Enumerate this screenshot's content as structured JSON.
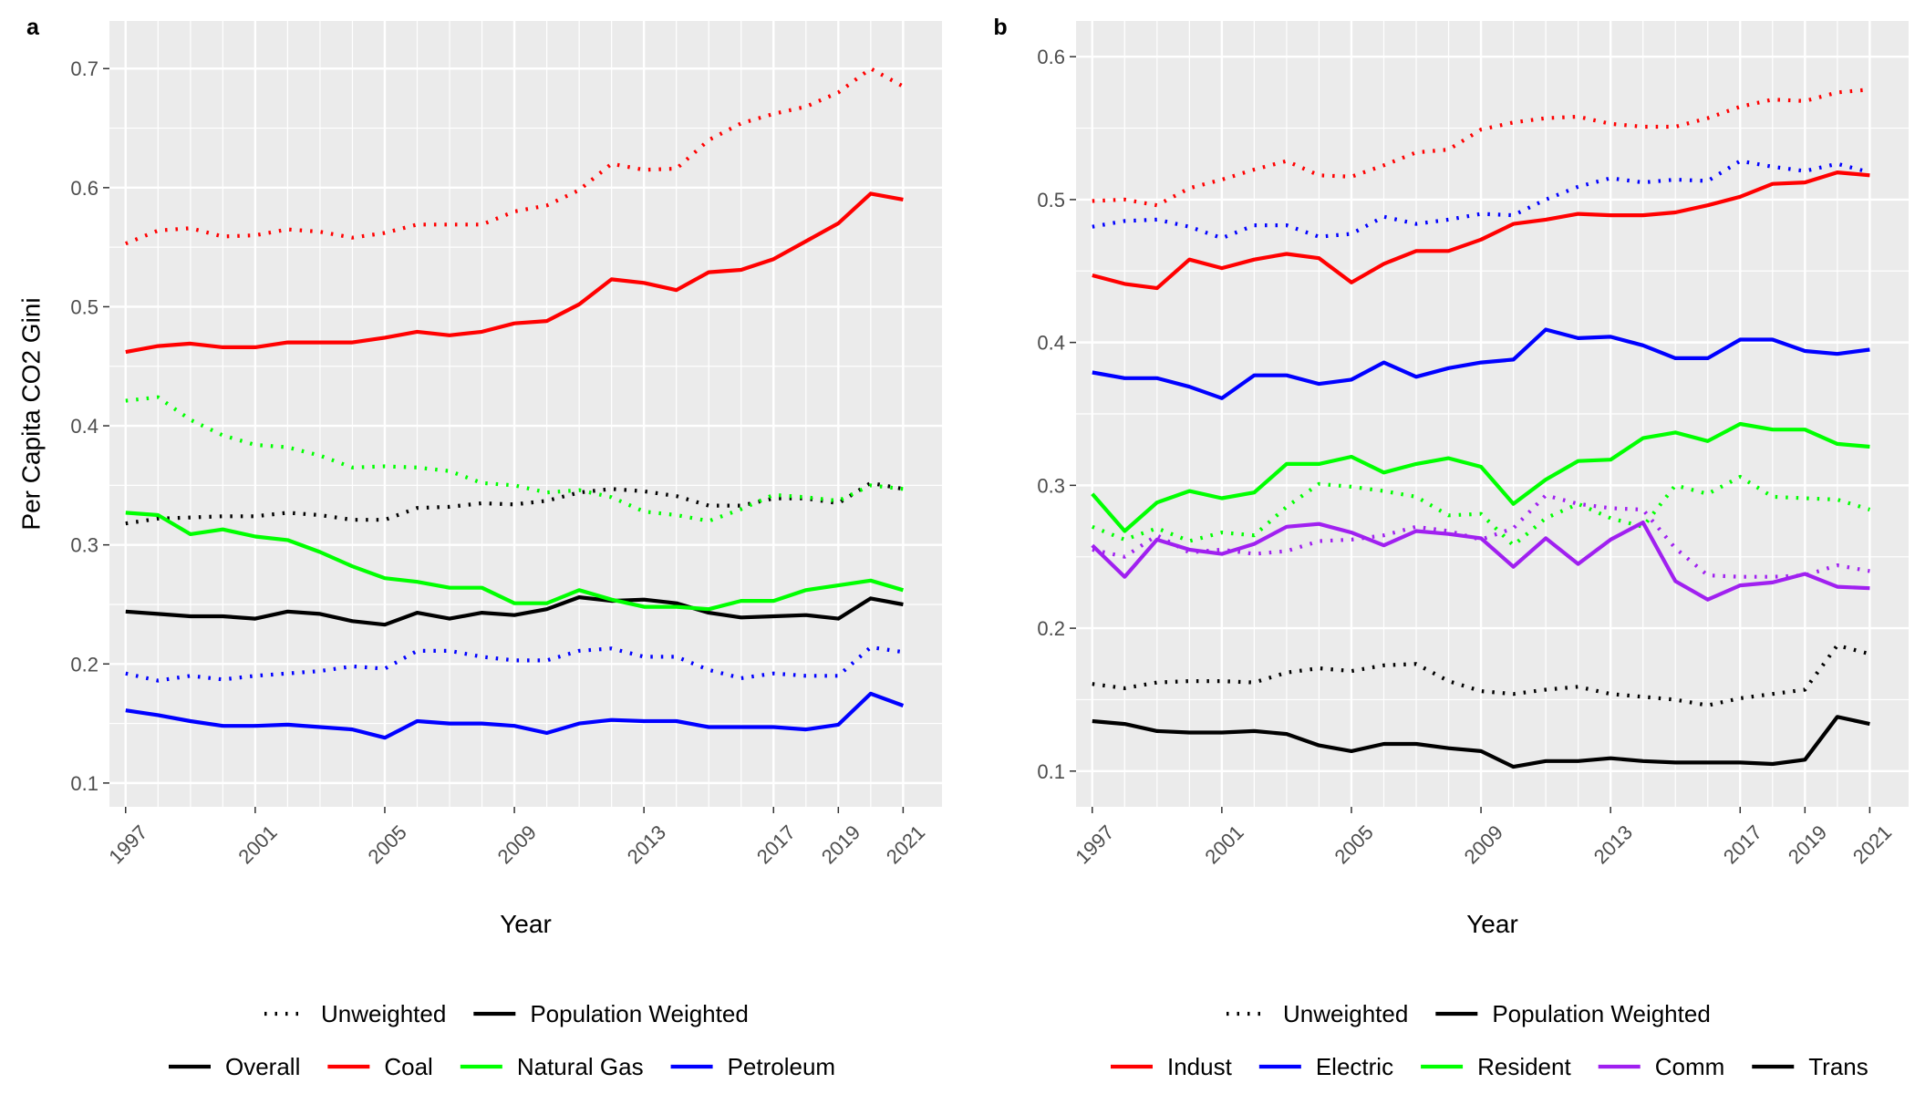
{
  "chart_data": [
    {
      "panel": "a",
      "type": "line",
      "xlabel": "Year",
      "ylabel": "Per Capita CO2 Gini",
      "x": [
        1997,
        1998,
        1999,
        2000,
        2001,
        2002,
        2003,
        2004,
        2005,
        2006,
        2007,
        2008,
        2009,
        2010,
        2011,
        2012,
        2013,
        2014,
        2015,
        2016,
        2017,
        2018,
        2019,
        2020,
        2021
      ],
      "xticks": [
        1997,
        2001,
        2005,
        2009,
        2013,
        2017,
        2019,
        2021
      ],
      "yticks": [
        0.1,
        0.2,
        0.3,
        0.4,
        0.5,
        0.6,
        0.7
      ],
      "xlim": [
        1996.5,
        2022.2
      ],
      "ylim": [
        0.08,
        0.74
      ],
      "grid": true,
      "legend_position": "bottom",
      "linetype_legend": [
        "Unweighted",
        "Population Weighted"
      ],
      "color_legend": [
        {
          "name": "Overall",
          "color": "#000000"
        },
        {
          "name": "Coal",
          "color": "#ff0000"
        },
        {
          "name": "Natural Gas",
          "color": "#00ff00"
        },
        {
          "name": "Petroleum",
          "color": "#0000ff"
        }
      ],
      "series": [
        {
          "name": "Overall",
          "weighting": "Unweighted",
          "color": "#000000",
          "values": [
            0.318,
            0.322,
            0.323,
            0.324,
            0.324,
            0.327,
            0.325,
            0.321,
            0.321,
            0.331,
            0.332,
            0.335,
            0.334,
            0.337,
            0.344,
            0.347,
            0.345,
            0.341,
            0.333,
            0.333,
            0.339,
            0.339,
            0.335,
            0.352,
            0.347
          ]
        },
        {
          "name": "Overall",
          "weighting": "Population Weighted",
          "color": "#000000",
          "values": [
            0.244,
            0.242,
            0.24,
            0.24,
            0.238,
            0.244,
            0.242,
            0.236,
            0.233,
            0.243,
            0.238,
            0.243,
            0.241,
            0.246,
            0.256,
            0.253,
            0.254,
            0.251,
            0.243,
            0.239,
            0.24,
            0.241,
            0.238,
            0.255,
            0.25
          ]
        },
        {
          "name": "Coal",
          "weighting": "Unweighted",
          "color": "#ff0000",
          "values": [
            0.553,
            0.564,
            0.566,
            0.559,
            0.56,
            0.565,
            0.563,
            0.558,
            0.562,
            0.569,
            0.569,
            0.569,
            0.58,
            0.585,
            0.598,
            0.62,
            0.615,
            0.616,
            0.64,
            0.654,
            0.662,
            0.668,
            0.68,
            0.7,
            0.685
          ]
        },
        {
          "name": "Coal",
          "weighting": "Population Weighted",
          "color": "#ff0000",
          "values": [
            0.462,
            0.467,
            0.469,
            0.466,
            0.466,
            0.47,
            0.47,
            0.47,
            0.474,
            0.479,
            0.476,
            0.479,
            0.486,
            0.488,
            0.502,
            0.523,
            0.52,
            0.514,
            0.529,
            0.531,
            0.54,
            0.555,
            0.57,
            0.595,
            0.59
          ]
        },
        {
          "name": "Natural Gas",
          "weighting": "Unweighted",
          "color": "#00ff00",
          "values": [
            0.421,
            0.424,
            0.405,
            0.392,
            0.384,
            0.382,
            0.375,
            0.365,
            0.366,
            0.365,
            0.362,
            0.352,
            0.35,
            0.344,
            0.346,
            0.34,
            0.328,
            0.325,
            0.32,
            0.33,
            0.342,
            0.34,
            0.337,
            0.35,
            0.347
          ]
        },
        {
          "name": "Natural Gas",
          "weighting": "Population Weighted",
          "color": "#00ff00",
          "values": [
            0.327,
            0.325,
            0.309,
            0.313,
            0.307,
            0.304,
            0.294,
            0.282,
            0.272,
            0.269,
            0.264,
            0.264,
            0.251,
            0.251,
            0.262,
            0.254,
            0.248,
            0.248,
            0.246,
            0.253,
            0.253,
            0.262,
            0.266,
            0.27,
            0.262
          ]
        },
        {
          "name": "Petroleum",
          "weighting": "Unweighted",
          "color": "#0000ff",
          "values": [
            0.192,
            0.186,
            0.19,
            0.187,
            0.19,
            0.192,
            0.194,
            0.198,
            0.196,
            0.211,
            0.211,
            0.206,
            0.203,
            0.203,
            0.211,
            0.213,
            0.206,
            0.206,
            0.195,
            0.188,
            0.192,
            0.19,
            0.19,
            0.214,
            0.21
          ]
        },
        {
          "name": "Petroleum",
          "weighting": "Population Weighted",
          "color": "#0000ff",
          "values": [
            0.161,
            0.157,
            0.152,
            0.148,
            0.148,
            0.149,
            0.147,
            0.145,
            0.138,
            0.152,
            0.15,
            0.15,
            0.148,
            0.142,
            0.15,
            0.153,
            0.152,
            0.152,
            0.147,
            0.147,
            0.147,
            0.145,
            0.149,
            0.175,
            0.165
          ]
        }
      ]
    },
    {
      "panel": "b",
      "type": "line",
      "xlabel": "Year",
      "ylabel": "",
      "x": [
        1997,
        1998,
        1999,
        2000,
        2001,
        2002,
        2003,
        2004,
        2005,
        2006,
        2007,
        2008,
        2009,
        2010,
        2011,
        2012,
        2013,
        2014,
        2015,
        2016,
        2017,
        2018,
        2019,
        2020,
        2021
      ],
      "xticks": [
        1997,
        2001,
        2005,
        2009,
        2013,
        2017,
        2019,
        2021
      ],
      "yticks": [
        0.1,
        0.2,
        0.3,
        0.4,
        0.5,
        0.6
      ],
      "xlim": [
        1996.5,
        2022.2
      ],
      "ylim": [
        0.075,
        0.625
      ],
      "grid": true,
      "legend_position": "bottom",
      "linetype_legend": [
        "Unweighted",
        "Population Weighted"
      ],
      "color_legend": [
        {
          "name": "Indust",
          "color": "#ff0000"
        },
        {
          "name": "Electric",
          "color": "#0000ff"
        },
        {
          "name": "Resident",
          "color": "#00ff00"
        },
        {
          "name": "Comm",
          "color": "#a020f0"
        },
        {
          "name": "Trans",
          "color": "#000000"
        }
      ],
      "series": [
        {
          "name": "Indust",
          "weighting": "Unweighted",
          "color": "#ff0000",
          "values": [
            0.499,
            0.5,
            0.496,
            0.508,
            0.514,
            0.521,
            0.527,
            0.517,
            0.516,
            0.524,
            0.533,
            0.535,
            0.549,
            0.554,
            0.557,
            0.558,
            0.553,
            0.551,
            0.551,
            0.557,
            0.565,
            0.57,
            0.569,
            0.575,
            0.577
          ]
        },
        {
          "name": "Indust",
          "weighting": "Population Weighted",
          "color": "#ff0000",
          "values": [
            0.447,
            0.441,
            0.438,
            0.458,
            0.452,
            0.458,
            0.462,
            0.459,
            0.442,
            0.455,
            0.464,
            0.464,
            0.472,
            0.483,
            0.486,
            0.49,
            0.489,
            0.489,
            0.491,
            0.496,
            0.502,
            0.511,
            0.512,
            0.519,
            0.517
          ]
        },
        {
          "name": "Electric",
          "weighting": "Unweighted",
          "color": "#0000ff",
          "values": [
            0.481,
            0.485,
            0.486,
            0.481,
            0.473,
            0.482,
            0.482,
            0.474,
            0.476,
            0.488,
            0.483,
            0.486,
            0.49,
            0.489,
            0.5,
            0.509,
            0.515,
            0.512,
            0.514,
            0.513,
            0.527,
            0.523,
            0.52,
            0.525,
            0.519
          ]
        },
        {
          "name": "Electric",
          "weighting": "Population Weighted",
          "color": "#0000ff",
          "values": [
            0.379,
            0.375,
            0.375,
            0.369,
            0.361,
            0.377,
            0.377,
            0.371,
            0.374,
            0.386,
            0.376,
            0.382,
            0.386,
            0.388,
            0.409,
            0.403,
            0.404,
            0.398,
            0.389,
            0.389,
            0.402,
            0.402,
            0.394,
            0.392,
            0.395
          ]
        },
        {
          "name": "Resident",
          "weighting": "Unweighted",
          "color": "#00ff00",
          "values": [
            0.271,
            0.262,
            0.27,
            0.261,
            0.267,
            0.265,
            0.285,
            0.301,
            0.299,
            0.296,
            0.292,
            0.279,
            0.28,
            0.258,
            0.277,
            0.287,
            0.277,
            0.271,
            0.3,
            0.294,
            0.306,
            0.292,
            0.291,
            0.29,
            0.283
          ]
        },
        {
          "name": "Resident",
          "weighting": "Population Weighted",
          "color": "#00ff00",
          "values": [
            0.294,
            0.268,
            0.288,
            0.296,
            0.291,
            0.295,
            0.315,
            0.315,
            0.32,
            0.309,
            0.315,
            0.319,
            0.313,
            0.287,
            0.304,
            0.317,
            0.318,
            0.333,
            0.337,
            0.331,
            0.343,
            0.339,
            0.339,
            0.329,
            0.327
          ]
        },
        {
          "name": "Comm",
          "weighting": "Unweighted",
          "color": "#a020f0",
          "values": [
            0.255,
            0.25,
            0.265,
            0.253,
            0.255,
            0.252,
            0.254,
            0.261,
            0.262,
            0.265,
            0.271,
            0.268,
            0.262,
            0.27,
            0.293,
            0.287,
            0.284,
            0.283,
            0.256,
            0.237,
            0.236,
            0.236,
            0.237,
            0.244,
            0.24
          ]
        },
        {
          "name": "Comm",
          "weighting": "Population Weighted",
          "color": "#a020f0",
          "values": [
            0.258,
            0.236,
            0.262,
            0.255,
            0.252,
            0.259,
            0.271,
            0.273,
            0.267,
            0.258,
            0.268,
            0.266,
            0.263,
            0.243,
            0.263,
            0.245,
            0.262,
            0.274,
            0.233,
            0.22,
            0.23,
            0.232,
            0.238,
            0.229,
            0.228
          ]
        },
        {
          "name": "Trans",
          "weighting": "Unweighted",
          "color": "#000000",
          "values": [
            0.161,
            0.158,
            0.162,
            0.163,
            0.163,
            0.162,
            0.169,
            0.172,
            0.17,
            0.174,
            0.175,
            0.163,
            0.156,
            0.154,
            0.157,
            0.159,
            0.154,
            0.152,
            0.15,
            0.146,
            0.151,
            0.154,
            0.157,
            0.188,
            0.182
          ]
        },
        {
          "name": "Trans",
          "weighting": "Population Weighted",
          "color": "#000000",
          "values": [
            0.135,
            0.133,
            0.128,
            0.127,
            0.127,
            0.128,
            0.126,
            0.118,
            0.114,
            0.119,
            0.119,
            0.116,
            0.114,
            0.103,
            0.107,
            0.107,
            0.109,
            0.107,
            0.106,
            0.106,
            0.106,
            0.105,
            0.108,
            0.138,
            0.133
          ]
        }
      ]
    }
  ]
}
